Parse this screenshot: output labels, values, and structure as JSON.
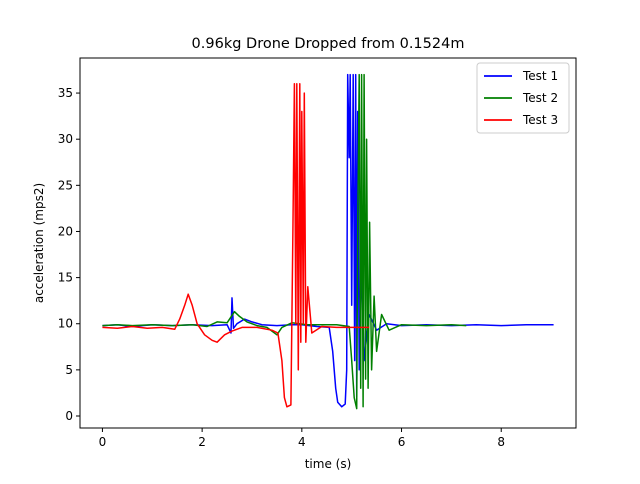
{
  "chart_data": {
    "type": "line",
    "title": "0.96kg Drone Dropped from 0.1524m",
    "xlabel": "time (s)",
    "ylabel": "acceleration (mps2)",
    "xlim": [
      -0.45,
      9.5
    ],
    "ylim": [
      -1.3,
      38.8
    ],
    "xticks": [
      0,
      2,
      4,
      6,
      8
    ],
    "yticks": [
      0,
      5,
      10,
      15,
      20,
      25,
      30,
      35
    ],
    "grid": false,
    "legend_position": "top-right",
    "series": [
      {
        "name": "Test 1",
        "color": "#0000ff",
        "points": [
          [
            0.0,
            9.8
          ],
          [
            0.3,
            9.9
          ],
          [
            0.6,
            9.7
          ],
          [
            1.0,
            9.9
          ],
          [
            1.4,
            9.8
          ],
          [
            1.8,
            9.9
          ],
          [
            2.2,
            9.8
          ],
          [
            2.5,
            9.9
          ],
          [
            2.58,
            9.0
          ],
          [
            2.6,
            12.8
          ],
          [
            2.63,
            9.5
          ],
          [
            2.7,
            10.0
          ],
          [
            2.85,
            10.5
          ],
          [
            3.0,
            10.2
          ],
          [
            3.2,
            9.9
          ],
          [
            3.5,
            9.8
          ],
          [
            3.8,
            9.9
          ],
          [
            4.0,
            9.9
          ],
          [
            4.3,
            9.7
          ],
          [
            4.55,
            9.6
          ],
          [
            4.62,
            7.0
          ],
          [
            4.68,
            3.0
          ],
          [
            4.72,
            1.5
          ],
          [
            4.8,
            1.0
          ],
          [
            4.87,
            1.3
          ],
          [
            4.9,
            5.0
          ],
          [
            4.92,
            37.0
          ],
          [
            4.95,
            28.0
          ],
          [
            4.97,
            37.0
          ],
          [
            5.0,
            12.0
          ],
          [
            5.03,
            37.0
          ],
          [
            5.06,
            6.0
          ],
          [
            5.08,
            37.0
          ],
          [
            5.1,
            2.0
          ],
          [
            5.12,
            33.0
          ],
          [
            5.15,
            5.0
          ],
          [
            5.2,
            16.0
          ],
          [
            5.25,
            6.0
          ],
          [
            5.35,
            11.0
          ],
          [
            5.5,
            9.3
          ],
          [
            5.7,
            10.0
          ],
          [
            6.0,
            9.8
          ],
          [
            6.5,
            9.9
          ],
          [
            7.0,
            9.8
          ],
          [
            7.5,
            9.9
          ],
          [
            8.0,
            9.8
          ],
          [
            8.5,
            9.9
          ],
          [
            9.05,
            9.9
          ]
        ]
      },
      {
        "name": "Test 2",
        "color": "#008000",
        "points": [
          [
            0.0,
            9.8
          ],
          [
            0.3,
            9.9
          ],
          [
            0.6,
            9.8
          ],
          [
            1.0,
            9.9
          ],
          [
            1.4,
            9.8
          ],
          [
            1.8,
            9.9
          ],
          [
            2.1,
            9.7
          ],
          [
            2.3,
            10.2
          ],
          [
            2.5,
            10.1
          ],
          [
            2.65,
            11.3
          ],
          [
            2.75,
            10.8
          ],
          [
            2.9,
            10.2
          ],
          [
            3.1,
            9.8
          ],
          [
            3.3,
            9.6
          ],
          [
            3.5,
            8.8
          ],
          [
            3.6,
            9.6
          ],
          [
            3.8,
            10.1
          ],
          [
            4.1,
            9.9
          ],
          [
            4.4,
            9.9
          ],
          [
            4.7,
            9.9
          ],
          [
            4.95,
            9.7
          ],
          [
            5.0,
            6.0
          ],
          [
            5.05,
            2.0
          ],
          [
            5.1,
            0.8
          ],
          [
            5.12,
            20.0
          ],
          [
            5.15,
            37.0
          ],
          [
            5.18,
            3.0
          ],
          [
            5.2,
            37.0
          ],
          [
            5.23,
            1.0
          ],
          [
            5.25,
            37.0
          ],
          [
            5.28,
            4.0
          ],
          [
            5.3,
            30.0
          ],
          [
            5.33,
            3.0
          ],
          [
            5.36,
            21.0
          ],
          [
            5.4,
            5.0
          ],
          [
            5.45,
            13.0
          ],
          [
            5.5,
            7.0
          ],
          [
            5.6,
            11.0
          ],
          [
            5.75,
            9.3
          ],
          [
            6.0,
            9.9
          ],
          [
            6.5,
            9.8
          ],
          [
            7.0,
            9.9
          ],
          [
            7.3,
            9.8
          ]
        ]
      },
      {
        "name": "Test 3",
        "color": "#ff0000",
        "points": [
          [
            0.0,
            9.6
          ],
          [
            0.3,
            9.5
          ],
          [
            0.6,
            9.7
          ],
          [
            0.9,
            9.5
          ],
          [
            1.2,
            9.6
          ],
          [
            1.45,
            9.4
          ],
          [
            1.55,
            10.5
          ],
          [
            1.65,
            12.0
          ],
          [
            1.72,
            13.2
          ],
          [
            1.8,
            12.0
          ],
          [
            1.9,
            10.0
          ],
          [
            2.05,
            8.8
          ],
          [
            2.2,
            8.2
          ],
          [
            2.3,
            8.0
          ],
          [
            2.45,
            8.8
          ],
          [
            2.6,
            9.2
          ],
          [
            2.8,
            9.6
          ],
          [
            3.1,
            9.6
          ],
          [
            3.4,
            9.3
          ],
          [
            3.52,
            9.0
          ],
          [
            3.6,
            6.0
          ],
          [
            3.65,
            2.0
          ],
          [
            3.7,
            1.0
          ],
          [
            3.78,
            1.2
          ],
          [
            3.82,
            20.0
          ],
          [
            3.85,
            36.0
          ],
          [
            3.88,
            10.0
          ],
          [
            3.9,
            36.0
          ],
          [
            3.93,
            5.0
          ],
          [
            3.96,
            36.0
          ],
          [
            3.98,
            8.0
          ],
          [
            4.0,
            33.0
          ],
          [
            4.03,
            10.0
          ],
          [
            4.05,
            35.0
          ],
          [
            4.08,
            8.0
          ],
          [
            4.12,
            14.0
          ],
          [
            4.2,
            9.0
          ],
          [
            4.4,
            9.7
          ],
          [
            4.7,
            9.6
          ],
          [
            5.0,
            9.6
          ],
          [
            5.35,
            9.6
          ]
        ]
      }
    ]
  }
}
